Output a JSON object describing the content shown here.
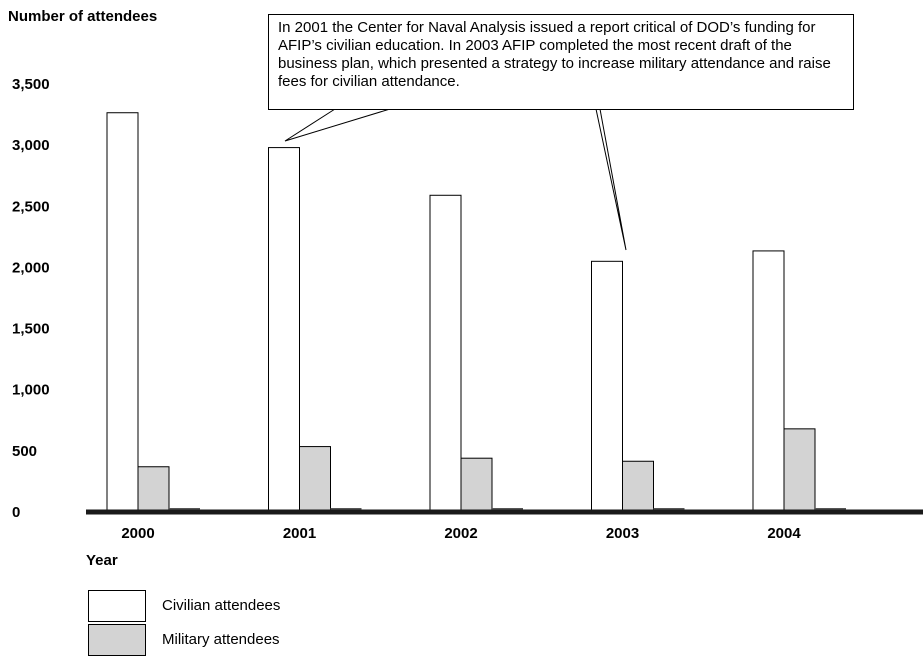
{
  "colors": {
    "civilian": "#ffffff",
    "military": "#d3d3d3",
    "axis": "#1a1a1a"
  },
  "callout": {
    "text": "In 2001 the Center for Naval Analysis issued a report critical of DOD’s funding for AFIP’s civilian education. In 2003 AFIP completed the most recent draft of the business plan, which presented a strategy to increase military attendance and raise fees for civilian attendance."
  },
  "chart_data": {
    "type": "bar",
    "title": "",
    "ylabel": "Number of attendees",
    "xlabel": "Year",
    "categories": [
      "2000",
      "2001",
      "2002",
      "2003",
      "2004"
    ],
    "series": [
      {
        "name": "Civilian attendees",
        "values": [
          3265,
          2980,
          2590,
          2050,
          2135
        ]
      },
      {
        "name": "Military attendees",
        "values": [
          370,
          535,
          440,
          415,
          680
        ]
      }
    ],
    "ylim": [
      0,
      3500
    ],
    "yticks": [
      0,
      500,
      1000,
      1500,
      2000,
      2500,
      3000,
      3500
    ],
    "ytick_labels": [
      "0",
      "500",
      "1,000",
      "1,500",
      "2,000",
      "2,500",
      "3,000",
      "3,500"
    ],
    "grid": false,
    "legend_position": "bottom-left"
  }
}
